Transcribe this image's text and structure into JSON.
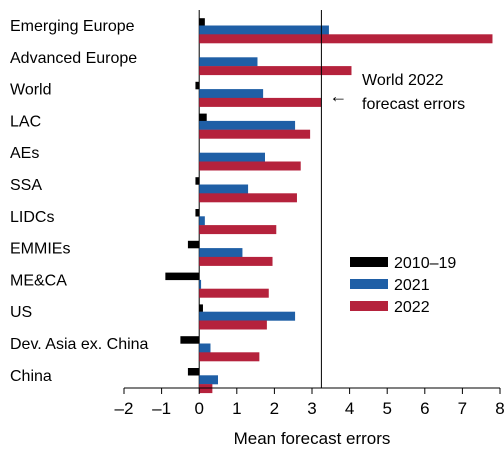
{
  "chart_data": {
    "type": "bar",
    "orientation": "horizontal",
    "categories": [
      "Emerging Europe",
      "Advanced Europe",
      "World",
      "LAC",
      "AEs",
      "SSA",
      "LIDCs",
      "EMMIEs",
      "ME&CA",
      "US",
      "Dev. Asia ex. China",
      "China"
    ],
    "series": [
      {
        "name": "2010–19",
        "color": "#000000",
        "values": [
          0.15,
          0.0,
          -0.1,
          0.2,
          0.0,
          -0.1,
          -0.1,
          -0.3,
          -0.9,
          0.1,
          -0.5,
          -0.3
        ]
      },
      {
        "name": "2021",
        "color": "#1f5fa6",
        "values": [
          3.45,
          1.55,
          1.7,
          2.55,
          1.75,
          1.3,
          0.15,
          1.15,
          0.05,
          2.55,
          0.3,
          0.5
        ]
      },
      {
        "name": "2022",
        "color": "#b5223c",
        "values": [
          7.8,
          4.05,
          3.25,
          2.95,
          2.7,
          2.6,
          2.05,
          1.95,
          1.85,
          1.8,
          1.6,
          0.35
        ]
      }
    ],
    "xlabel": "Mean forecast errors",
    "xlim": [
      -2,
      8
    ],
    "xticks": [
      -2,
      -1,
      0,
      1,
      2,
      3,
      4,
      5,
      6,
      7,
      8
    ],
    "xtick_labels": [
      "–2",
      "–1",
      "0",
      "1",
      "2",
      "3",
      "4",
      "5",
      "6",
      "7",
      "8"
    ],
    "reference_line": {
      "value": 3.25
    },
    "annotation": {
      "lines": [
        "World 2022",
        "forecast errors"
      ],
      "arrow": "←"
    },
    "legend": {
      "placement": "right-middle"
    },
    "grid": false
  }
}
